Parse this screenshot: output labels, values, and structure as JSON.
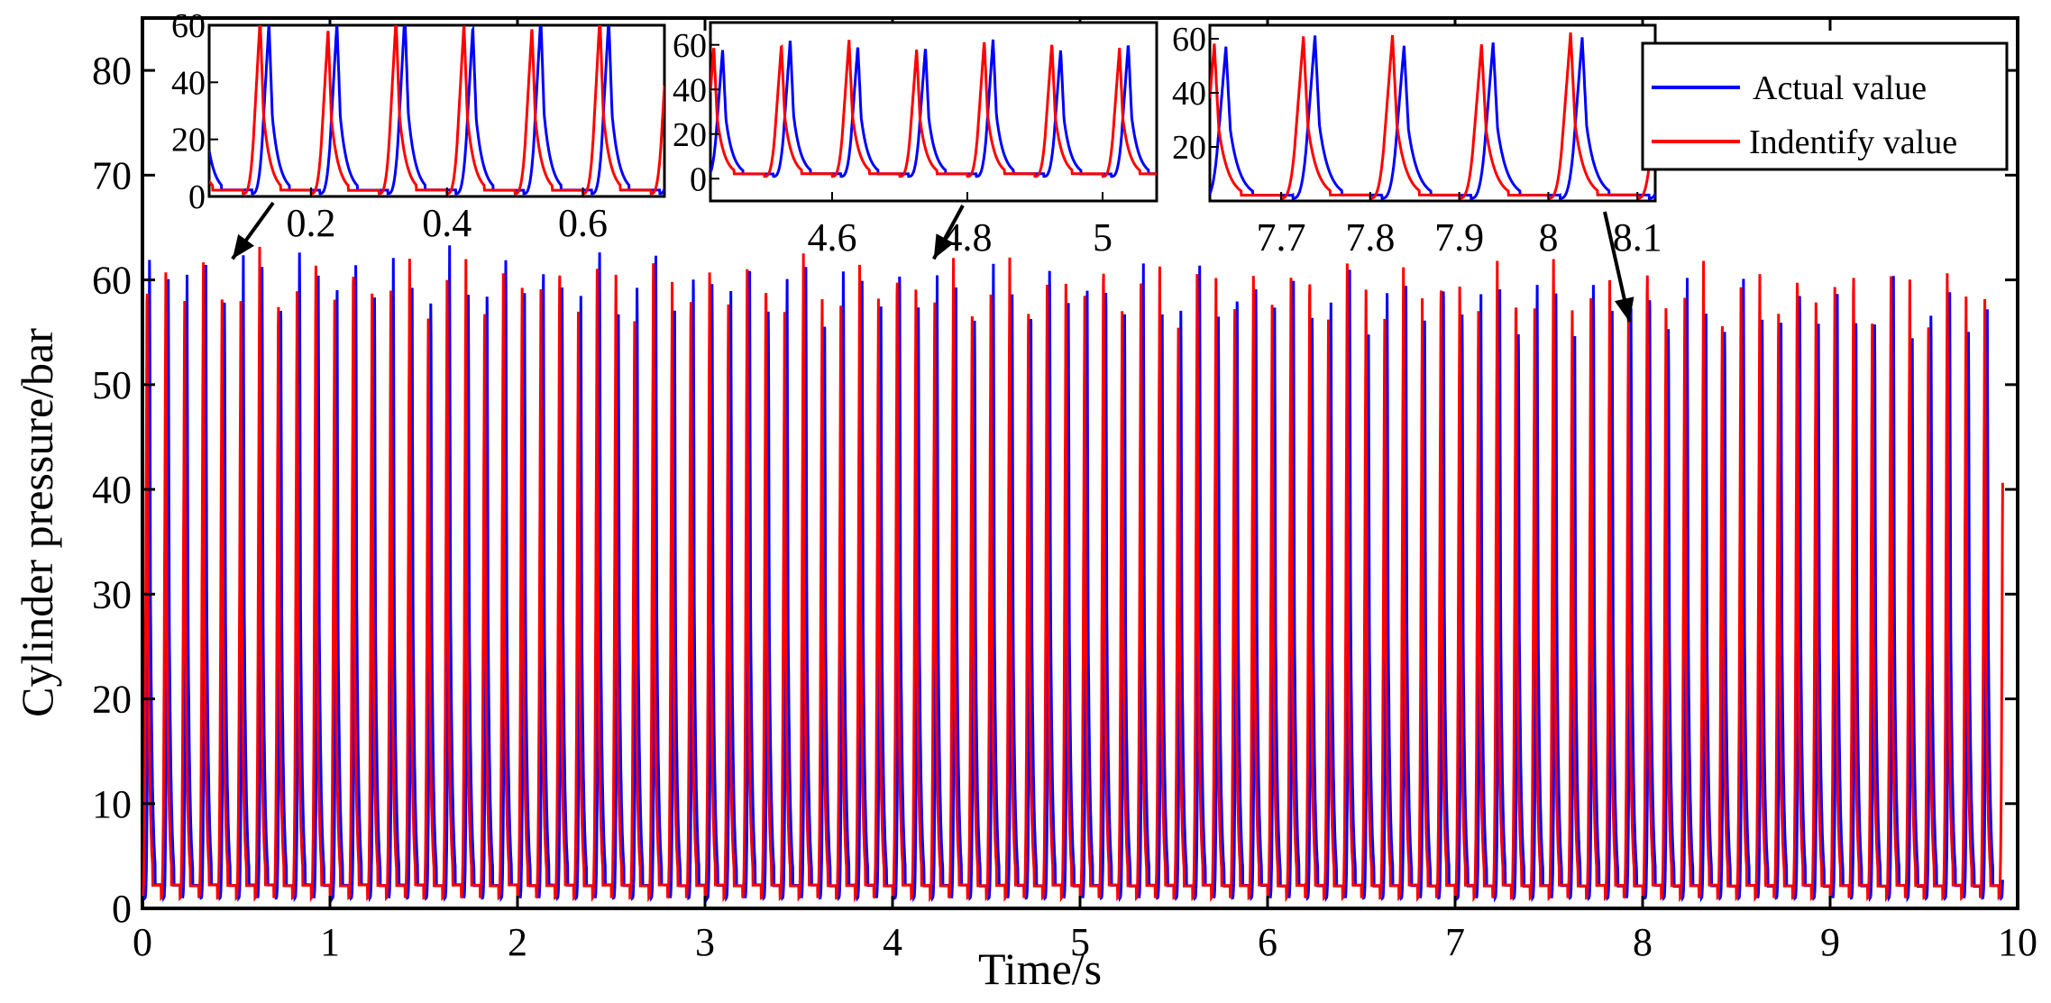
{
  "chart_data": {
    "type": "line",
    "xlabel": "Time/s",
    "ylabel": "Cylinder pressure/bar",
    "xlim": [
      0,
      10
    ],
    "ylim": [
      0,
      85
    ],
    "xticks": [
      "0",
      "1",
      "2",
      "3",
      "4",
      "5",
      "6",
      "7",
      "8",
      "9",
      "10"
    ],
    "yticks": [
      "0",
      "10",
      "20",
      "30",
      "40",
      "50",
      "60",
      "70",
      "80"
    ],
    "legend_position": "top-right",
    "series": [
      {
        "name": "Actual value",
        "color": "#0000ff",
        "period": 0.1,
        "phase": 0.013,
        "peak_start": 62,
        "peak_end": 58,
        "base": 1
      },
      {
        "name": "Indentify value",
        "color": "#ff0000",
        "period": 0.1,
        "phase": 0.0,
        "peak_start": 61,
        "peak_end": 60,
        "base": 1
      }
    ],
    "insets": [
      {
        "xlim": [
          0.05,
          0.72
        ],
        "ylim": [
          0,
          60
        ],
        "xticks": [
          "0.2",
          "0.4",
          "0.6"
        ],
        "yticks": [
          "0",
          "20",
          "40",
          "60"
        ],
        "arrow_to_x": 0.48
      },
      {
        "xlim": [
          4.42,
          5.08
        ],
        "ylim": [
          -10,
          70
        ],
        "xticks": [
          "4.6",
          "4.8",
          "5"
        ],
        "yticks": [
          "0",
          "20",
          "40",
          "60"
        ],
        "arrow_to_x": 4.22
      },
      {
        "xlim": [
          7.62,
          8.12
        ],
        "ylim": [
          0,
          65
        ],
        "xticks": [
          "7.7",
          "7.8",
          "7.9",
          "8",
          "8.1"
        ],
        "yticks": [
          "20",
          "40",
          "60"
        ],
        "arrow_to_x": 7.93
      }
    ]
  }
}
